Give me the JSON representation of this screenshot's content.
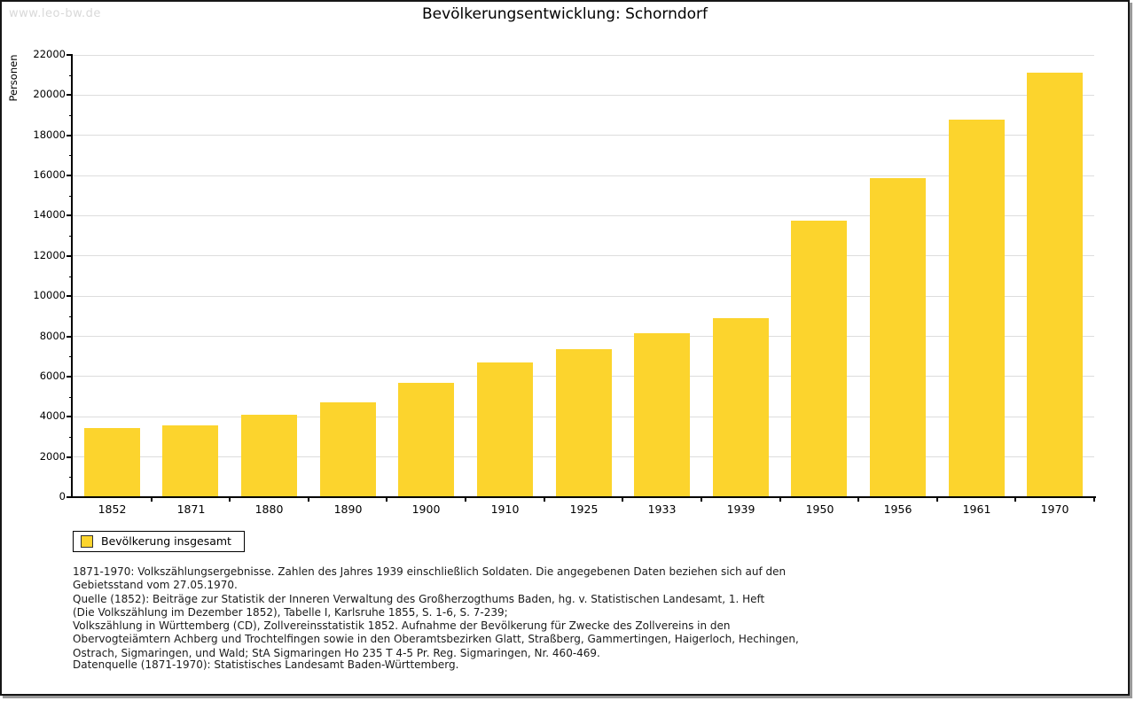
{
  "watermark": "www.leo-bw.de",
  "header": {
    "title": "Bevölkerungsentwicklung: Schorndorf"
  },
  "chart_data": {
    "type": "bar",
    "title": "Bevölkerungsentwicklung: Schorndorf",
    "xlabel": "",
    "ylabel": "Personen",
    "ylim": [
      0,
      22000
    ],
    "y_major_step": 2000,
    "y_minor_step": 1000,
    "grid": "horizontal-major",
    "legend_position": "bottom-left",
    "bar_color": "#fcd42d",
    "categories": [
      "1852",
      "1871",
      "1880",
      "1890",
      "1900",
      "1910",
      "1925",
      "1933",
      "1939",
      "1950",
      "1956",
      "1961",
      "1970"
    ],
    "series": [
      {
        "name": "Bevölkerung insgesamt",
        "color": "#fcd42d",
        "values": [
          3450,
          3550,
          4100,
          4700,
          5700,
          6700,
          7350,
          8150,
          8900,
          13750,
          15850,
          18800,
          21100
        ]
      }
    ]
  },
  "legend": {
    "label": "Bevölkerung insgesamt",
    "swatch_color": "#fcd42d"
  },
  "footnotes": [
    "1871-1970: Volkszählungsergebnisse. Zahlen des Jahres 1939 einschließlich Soldaten. Die angegebenen Daten beziehen sich auf den",
    "Gebietsstand vom 27.05.1970.",
    "Quelle (1852): Beiträge zur Statistik der Inneren Verwaltung des Großherzogthums Baden, hg. v. Statistischen Landesamt, 1. Heft",
    "(Die Volkszählung im Dezember 1852), Tabelle I, Karlsruhe 1855, S. 1-6, S. 7-239;",
    "Volkszählung in Württemberg (CD), Zollvereinsstatistik 1852. Aufnahme der Bevölkerung für Zwecke des Zollvereins in den",
    "Obervogteiämtern Achberg und Trochtelfingen sowie in den Oberamtsbezirken Glatt, Straßberg, Gammertingen, Haigerloch, Hechingen,",
    "Ostrach, Sigmaringen, und Wald; StA Sigmaringen Ho 235 T 4-5 Pr. Reg. Sigmaringen, Nr. 460-469."
  ],
  "datasource": "Datenquelle (1871-1970): Statistisches Landesamt Baden-Württemberg.",
  "colors": {
    "bar": "#fcd42d",
    "gridline": "#dddddd",
    "axis": "#000000",
    "watermark": "#d9d9d9",
    "frame_border": "#161616",
    "frame_shadow": "#9a9a9a"
  }
}
